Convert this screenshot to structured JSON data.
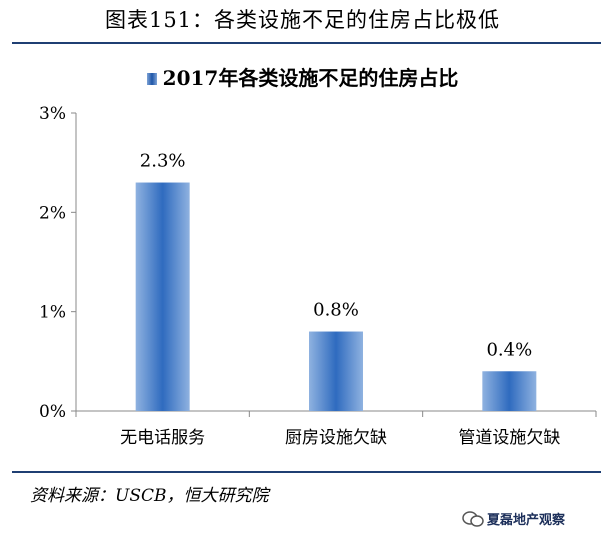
{
  "figure_title": "图表151：各类设施不足的住房占比极低",
  "source": "资料来源：USCB，恒大研究院",
  "watermark": "夏磊地产观察",
  "colors": {
    "bar": "#2f6bbf",
    "bar_light": "#8fb2e0",
    "rule": "#1f3f73"
  },
  "chart_data": {
    "type": "bar",
    "title": "2017年各类设施不足的住房占比",
    "categories": [
      "无电话服务",
      "厨房设施欠缺",
      "管道设施欠缺"
    ],
    "series": [
      {
        "name": "2017年各类设施不足的住房占比",
        "values": [
          2.3,
          0.8,
          0.4
        ]
      }
    ],
    "data_labels": [
      "2.3%",
      "0.8%",
      "0.4%"
    ],
    "ylim": [
      0,
      3
    ],
    "yticks": [
      "0%",
      "1%",
      "2%",
      "3%"
    ],
    "xlabel": "",
    "ylabel": "",
    "grid": false,
    "legend": "top"
  }
}
